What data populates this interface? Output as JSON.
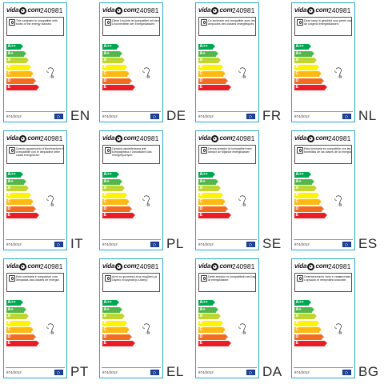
{
  "brand": {
    "logo_left": "vida",
    "logo_right": "com",
    "logo_dot": "."
  },
  "product_code": "240981",
  "regulation": "874/2012",
  "energy_classes": [
    {
      "label": "A++",
      "color": "#00a651",
      "length": 0.46
    },
    {
      "label": "A+",
      "color": "#51b848",
      "length": 0.54
    },
    {
      "label": "A",
      "color": "#bed630",
      "length": 0.62
    },
    {
      "label": "B",
      "color": "#fef200",
      "length": 0.7
    },
    {
      "label": "C",
      "color": "#fcb913",
      "length": 0.78
    },
    {
      "label": "D",
      "color": "#f26d21",
      "length": 0.86
    },
    {
      "label": "E",
      "color": "#ec1c24",
      "length": 0.94
    }
  ],
  "colors": {
    "border": "#2aa9c9",
    "eu_blue": "#1c3f95",
    "eu_star": "#f7d417"
  },
  "icons": {
    "notice": "bulb-icon",
    "product": "light-bulb-outline-icon",
    "flag": "eu-flag-icon"
  },
  "labels": [
    {
      "lang": "EN",
      "text": "This luminaire is compatible with bulbs of the energy classes:"
    },
    {
      "lang": "DE",
      "text": "Diese Leuchte ist kompatibel mit den Leuchtmitteln der Energieklassen:"
    },
    {
      "lang": "FR",
      "text": "Ce luminaire est compatible avec les ampoules des classes énergétiques:"
    },
    {
      "lang": "NL",
      "text": "Deze lamp is geschikt voor peren van de volgend energieklassen:"
    },
    {
      "lang": "IT",
      "text": "Questo apparecchio d'illuminazione è compatibile con le lampadine delle classi energetiche:"
    },
    {
      "lang": "PL",
      "text": "Oprawa oświetleniowa jest kompatybilna z żarówkami klas energetycznych:"
    },
    {
      "lang": "SE",
      "text": "Denna armatur är kompatibel med lampor av följande energiklasser:"
    },
    {
      "lang": "ES",
      "text": "Esta luminaria es compatible con las bombillas de las clases de la energía:"
    },
    {
      "lang": "PT",
      "text": "Este luminária é compatível com lâmpadas das classes de energia:"
    },
    {
      "lang": "EL",
      "text": "Αυτό το φωτιστικό είναι συμβατό με λάμπες ενεργειακής κλάσης:"
    },
    {
      "lang": "DA",
      "text": "Dette armatur er kompatibelt med løg af energiklasser:"
    },
    {
      "lang": "BG",
      "text": "Осветителното тяло е съвместимо с крушки от енергийни класове:"
    }
  ]
}
